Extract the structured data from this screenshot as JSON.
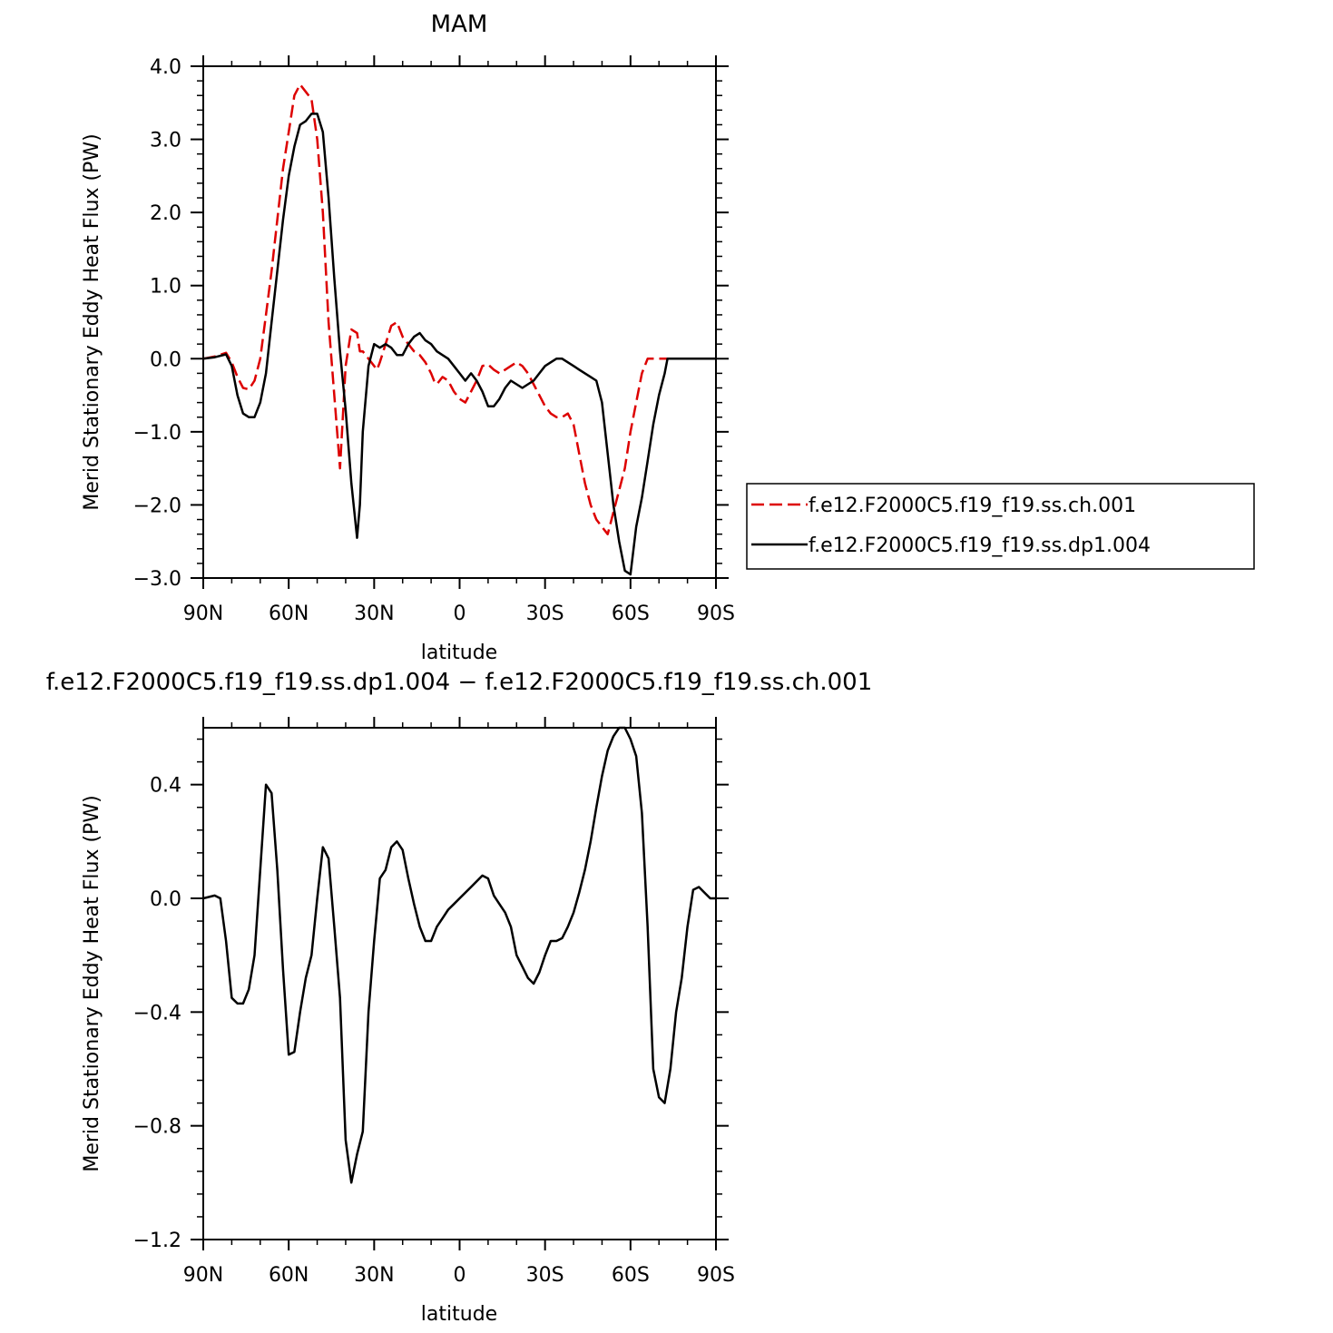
{
  "chart_data": [
    {
      "type": "line",
      "title": "MAM",
      "xlabel": "latitude",
      "ylabel": "Merid Stationary Eddy Heat Flux (PW)",
      "xlim": [
        -90,
        90
      ],
      "ylim": [
        -3.0,
        4.0
      ],
      "x_ticks": [
        -90,
        -60,
        -30,
        0,
        30,
        60,
        90
      ],
      "x_tick_labels": [
        "90N",
        "60N",
        "30N",
        "0",
        "30S",
        "60S",
        "90S"
      ],
      "y_ticks": [
        -3,
        -2,
        -1,
        0,
        1,
        2,
        3,
        4
      ],
      "y_tick_labels": [
        "−3.0",
        "−2.0",
        "−1.0",
        "0.0",
        "1.0",
        "2.0",
        "3.0",
        "4.0"
      ],
      "grid": false,
      "legend_position": "right",
      "series": [
        {
          "name": "f.e12.F2000C5.f19_f19.ss.ch.001",
          "color": "#dd0000",
          "dash": "dashed",
          "x": [
            -90,
            -86,
            -82,
            -80,
            -78,
            -76,
            -74,
            -72,
            -70,
            -68,
            -66,
            -64,
            -62,
            -60,
            -58,
            -56,
            -54,
            -52,
            -50,
            -48,
            -46,
            -44,
            -42,
            -40,
            -38,
            -36,
            -35,
            -34,
            -32,
            -30,
            -29,
            -28,
            -26,
            -24,
            -22,
            -20,
            -18,
            -16,
            -14,
            -12,
            -10,
            -9,
            -8,
            -6,
            -4,
            -2,
            0,
            2,
            4,
            6,
            8,
            10,
            12,
            14,
            16,
            18,
            20,
            22,
            24,
            26,
            28,
            30,
            32,
            34,
            36,
            38,
            40,
            42,
            44,
            46,
            48,
            50,
            52,
            54,
            56,
            58,
            60,
            62,
            64,
            66,
            68,
            70,
            72,
            74,
            75,
            76,
            78,
            80,
            82,
            84,
            86,
            88,
            90
          ],
          "y": [
            0.0,
            0.03,
            0.08,
            -0.05,
            -0.25,
            -0.4,
            -0.42,
            -0.3,
            0.0,
            0.6,
            1.2,
            1.9,
            2.6,
            3.1,
            3.6,
            3.75,
            3.65,
            3.55,
            3.0,
            2.0,
            0.5,
            -0.5,
            -1.5,
            -0.1,
            0.4,
            0.35,
            0.1,
            0.1,
            0.0,
            -0.1,
            -0.15,
            -0.05,
            0.2,
            0.45,
            0.5,
            0.3,
            0.2,
            0.1,
            0.05,
            -0.05,
            -0.2,
            -0.3,
            -0.35,
            -0.25,
            -0.3,
            -0.45,
            -0.55,
            -0.6,
            -0.45,
            -0.3,
            -0.1,
            -0.08,
            -0.15,
            -0.2,
            -0.15,
            -0.1,
            -0.05,
            -0.1,
            -0.2,
            -0.35,
            -0.5,
            -0.65,
            -0.75,
            -0.8,
            -0.8,
            -0.75,
            -0.9,
            -1.3,
            -1.7,
            -2.0,
            -2.2,
            -2.3,
            -2.4,
            -2.1,
            -1.8,
            -1.5,
            -1.0,
            -0.6,
            -0.2,
            0.0,
            0.0,
            0.0,
            0.0,
            0.0,
            0.0,
            0.0,
            0.0,
            0.0,
            0.0,
            0.0,
            0.0,
            0.0,
            0.0
          ]
        },
        {
          "name": "f.e12.F2000C5.f19_f19.ss.dp1.004",
          "color": "#000000",
          "dash": "solid",
          "x": [
            -90,
            -86,
            -82,
            -80,
            -78,
            -76,
            -74,
            -72,
            -70,
            -68,
            -66,
            -64,
            -62,
            -60,
            -58,
            -56,
            -54,
            -52,
            -50,
            -48,
            -46,
            -44,
            -42,
            -40,
            -38,
            -36,
            -35,
            -34,
            -32,
            -30,
            -28,
            -26,
            -24,
            -22,
            -20,
            -18,
            -16,
            -14,
            -12,
            -10,
            -8,
            -6,
            -4,
            -2,
            0,
            2,
            4,
            6,
            8,
            10,
            12,
            14,
            16,
            18,
            20,
            22,
            24,
            26,
            28,
            30,
            32,
            34,
            36,
            38,
            40,
            42,
            44,
            46,
            48,
            50,
            52,
            54,
            56,
            58,
            60,
            62,
            64,
            66,
            68,
            70,
            72,
            73,
            74,
            76,
            78,
            80,
            82,
            84,
            86,
            88,
            90
          ],
          "y": [
            0.0,
            0.02,
            0.06,
            -0.1,
            -0.5,
            -0.75,
            -0.8,
            -0.8,
            -0.6,
            -0.2,
            0.5,
            1.2,
            1.9,
            2.5,
            2.9,
            3.2,
            3.25,
            3.35,
            3.35,
            3.1,
            2.2,
            1.1,
            0.1,
            -0.7,
            -1.7,
            -2.45,
            -2.0,
            -1.0,
            -0.1,
            0.2,
            0.15,
            0.2,
            0.15,
            0.05,
            0.05,
            0.2,
            0.3,
            0.35,
            0.25,
            0.2,
            0.1,
            0.05,
            0.0,
            -0.1,
            -0.2,
            -0.3,
            -0.2,
            -0.3,
            -0.45,
            -0.65,
            -0.65,
            -0.55,
            -0.4,
            -0.3,
            -0.35,
            -0.4,
            -0.35,
            -0.3,
            -0.2,
            -0.1,
            -0.05,
            0.0,
            0.0,
            -0.05,
            -0.1,
            -0.15,
            -0.2,
            -0.25,
            -0.3,
            -0.6,
            -1.3,
            -2.0,
            -2.5,
            -2.9,
            -2.95,
            -2.3,
            -1.9,
            -1.4,
            -0.9,
            -0.5,
            -0.2,
            0.0,
            0.0,
            0.0,
            0.0,
            0.0,
            0.0,
            0.0,
            0.0,
            0.0,
            0.0
          ]
        }
      ]
    },
    {
      "type": "line",
      "title": "f.e12.F2000C5.f19_f19.ss.dp1.004 − f.e12.F2000C5.f19_f19.ss.ch.001",
      "xlabel": "latitude",
      "ylabel": "Merid Stationary Eddy Heat Flux (PW)",
      "xlim": [
        -90,
        90
      ],
      "ylim": [
        -1.2,
        0.6
      ],
      "x_ticks": [
        -90,
        -60,
        -30,
        0,
        30,
        60,
        90
      ],
      "x_tick_labels": [
        "90N",
        "60N",
        "30N",
        "0",
        "30S",
        "60S",
        "90S"
      ],
      "y_ticks": [
        -1.2,
        -0.8,
        -0.4,
        0.0,
        0.4
      ],
      "y_tick_labels": [
        "−1.2",
        "−0.8",
        "−0.4",
        "0.0",
        "0.4"
      ],
      "grid": false,
      "series": [
        {
          "color": "#000000",
          "dash": "solid",
          "x": [
            -90,
            -86,
            -84,
            -82,
            -80,
            -78,
            -76,
            -74,
            -72,
            -70,
            -68,
            -66,
            -64,
            -62,
            -60,
            -58,
            -56,
            -54,
            -52,
            -50,
            -48,
            -46,
            -44,
            -42,
            -40,
            -38,
            -36,
            -34,
            -32,
            -30,
            -28,
            -26,
            -24,
            -22,
            -20,
            -18,
            -16,
            -14,
            -12,
            -10,
            -8,
            -6,
            -4,
            -2,
            0,
            2,
            4,
            6,
            8,
            10,
            12,
            14,
            16,
            18,
            20,
            22,
            24,
            26,
            28,
            30,
            32,
            34,
            36,
            38,
            40,
            42,
            44,
            46,
            48,
            50,
            52,
            54,
            56,
            58,
            60,
            62,
            64,
            66,
            68,
            70,
            72,
            74,
            76,
            78,
            80,
            82,
            84,
            86,
            88,
            90
          ],
          "y": [
            0.0,
            0.01,
            0.0,
            -0.15,
            -0.35,
            -0.37,
            -0.37,
            -0.32,
            -0.2,
            0.1,
            0.4,
            0.37,
            0.1,
            -0.25,
            -0.55,
            -0.54,
            -0.4,
            -0.28,
            -0.2,
            0.0,
            0.18,
            0.14,
            -0.1,
            -0.35,
            -0.85,
            -1.0,
            -0.9,
            -0.82,
            -0.4,
            -0.15,
            0.07,
            0.1,
            0.18,
            0.2,
            0.17,
            0.07,
            -0.02,
            -0.1,
            -0.15,
            -0.15,
            -0.1,
            -0.07,
            -0.04,
            -0.02,
            0.0,
            0.02,
            0.04,
            0.06,
            0.08,
            0.07,
            0.01,
            -0.02,
            -0.05,
            -0.1,
            -0.2,
            -0.24,
            -0.28,
            -0.3,
            -0.26,
            -0.2,
            -0.15,
            -0.15,
            -0.14,
            -0.1,
            -0.05,
            0.02,
            0.1,
            0.2,
            0.32,
            0.43,
            0.52,
            0.57,
            0.6,
            0.6,
            0.56,
            0.5,
            0.3,
            -0.1,
            -0.6,
            -0.7,
            -0.72,
            -0.6,
            -0.4,
            -0.28,
            -0.1,
            0.03,
            0.04,
            0.02,
            0.0,
            0.0
          ]
        }
      ]
    }
  ]
}
